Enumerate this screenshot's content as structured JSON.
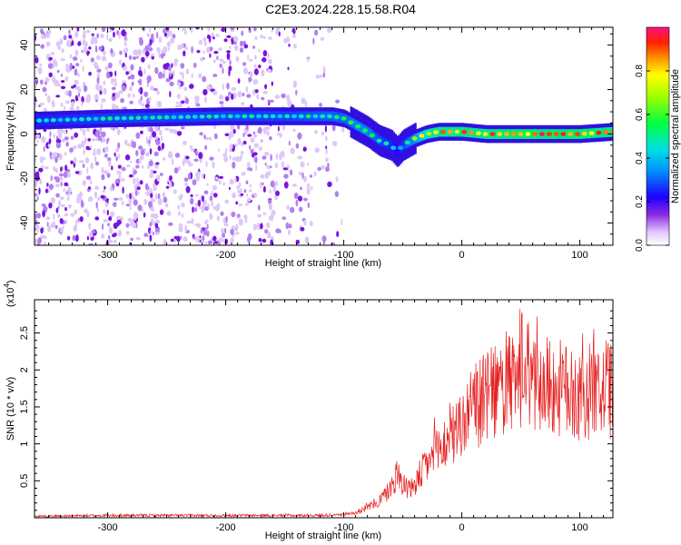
{
  "title": "C2E3.2024.228.15.58.R04",
  "chart_data": [
    {
      "type": "heatmap",
      "panel": "spectrogram",
      "xlabel": "Height of straight line (km)",
      "ylabel": "Frequency (Hz)",
      "xlim": [
        -362,
        128
      ],
      "ylim": [
        -50,
        48
      ],
      "xticks": [
        -300,
        -200,
        -100,
        0,
        100
      ],
      "yticks": [
        -40,
        -20,
        0,
        20,
        40
      ],
      "xtick_labels": [
        "-300",
        "-200",
        "-100",
        "0",
        "100"
      ],
      "ytick_labels": [
        "-40",
        "-20",
        "0",
        "20",
        "40"
      ],
      "colorbar": {
        "label": "Normalized spectral amplitude",
        "range": [
          0,
          1
        ],
        "ticks": [
          0.0,
          0.2,
          0.4,
          0.6,
          0.8
        ],
        "tick_labels": [
          "0.0",
          "0.2",
          "0.4",
          "0.6",
          "0.8"
        ]
      },
      "ridge": {
        "x": [
          -362,
          -300,
          -200,
          -150,
          -110,
          -100,
          -90,
          -80,
          -70,
          -60,
          -55,
          -50,
          -40,
          -30,
          -20,
          0,
          20,
          40,
          60,
          80,
          100,
          128
        ],
        "y": [
          6,
          7,
          8,
          8,
          8,
          7,
          4,
          1,
          -3,
          -5,
          -8,
          -5,
          -2,
          0,
          1,
          1,
          0,
          0,
          0,
          0,
          0,
          1
        ],
        "amplitude": [
          0.45,
          0.5,
          0.5,
          0.5,
          0.55,
          0.55,
          0.6,
          0.6,
          0.5,
          0.45,
          0.4,
          0.5,
          0.65,
          0.85,
          0.9,
          0.9,
          0.9,
          0.95,
          0.95,
          0.95,
          0.95,
          0.9
        ]
      },
      "noise_region_x": [
        -362,
        -110
      ]
    },
    {
      "type": "line",
      "panel": "snr",
      "xlabel": "Height of straight line (km)",
      "ylabel": "SNR (10 * v/v)",
      "multiplier_label": "(x10",
      "multiplier_exponent": "4",
      "multiplier_close": ")",
      "xlim": [
        -362,
        128
      ],
      "ylim": [
        0,
        2.95
      ],
      "xticks": [
        -300,
        -200,
        -100,
        0,
        100
      ],
      "yticks": [
        0.5,
        1.0,
        1.5,
        2.0,
        2.5
      ],
      "xtick_labels": [
        "-300",
        "-200",
        "-100",
        "0",
        "100"
      ],
      "ytick_labels": [
        "0.5",
        "1",
        "1.5",
        "2",
        "2.5"
      ],
      "series": [
        {
          "name": "SNR",
          "color": "#e62020",
          "x": [
            -362,
            -300,
            -200,
            -120,
            -100,
            -90,
            -80,
            -70,
            -60,
            -55,
            -50,
            -45,
            -40,
            -30,
            -20,
            -10,
            0,
            10,
            20,
            30,
            40,
            50,
            60,
            70,
            80,
            90,
            100,
            110,
            120,
            128
          ],
          "y": [
            0.02,
            0.03,
            0.03,
            0.03,
            0.05,
            0.08,
            0.15,
            0.25,
            0.45,
            0.65,
            0.55,
            0.4,
            0.5,
            0.8,
            1.0,
            1.2,
            1.4,
            1.65,
            1.8,
            1.9,
            2.0,
            2.05,
            2.1,
            2.0,
            1.95,
            1.9,
            1.85,
            1.9,
            1.95,
            1.9
          ]
        }
      ]
    }
  ],
  "colors": {
    "axis": "#000000",
    "snr_line": "#e62020"
  }
}
